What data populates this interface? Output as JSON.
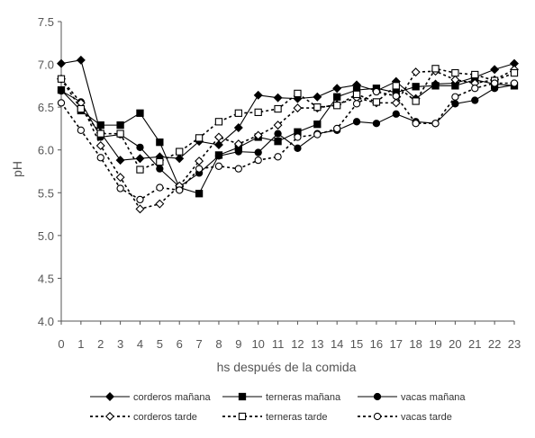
{
  "chart_data": {
    "type": "line",
    "title": "",
    "xlabel": "hs después de la comida",
    "ylabel": "pH",
    "x": [
      0,
      1,
      2,
      3,
      4,
      5,
      6,
      7,
      8,
      9,
      10,
      11,
      12,
      13,
      14,
      15,
      16,
      17,
      18,
      19,
      20,
      21,
      22,
      23
    ],
    "xlim": [
      0,
      23
    ],
    "ylim": [
      4.0,
      7.5
    ],
    "yticks": [
      "4.0",
      "4.5",
      "5.0",
      "5.5",
      "6.0",
      "6.5",
      "7.0",
      "7.5"
    ],
    "grid": false,
    "legend_position": "bottom",
    "series": [
      {
        "name": "corderos mañana",
        "marker": "diamond",
        "fill": "filled",
        "dash": "solid",
        "values": [
          7.01,
          7.05,
          6.2,
          5.88,
          5.9,
          5.92,
          5.9,
          6.1,
          6.06,
          6.26,
          6.64,
          6.61,
          6.6,
          6.62,
          6.72,
          6.76,
          6.69,
          6.8,
          6.6,
          6.77,
          6.78,
          6.85,
          6.94,
          7.01
        ]
      },
      {
        "name": "terneras mañana",
        "marker": "square",
        "fill": "filled",
        "dash": "solid",
        "values": [
          6.7,
          6.46,
          6.29,
          6.29,
          6.43,
          6.09,
          5.56,
          5.49,
          5.94,
          6.03,
          6.15,
          6.1,
          6.21,
          6.3,
          6.62,
          6.7,
          6.72,
          6.67,
          6.74,
          6.75,
          6.75,
          6.82,
          6.77,
          6.75
        ]
      },
      {
        "name": "vacas mañana",
        "marker": "circle",
        "fill": "filled",
        "dash": "solid",
        "values": [
          6.69,
          6.56,
          6.15,
          6.18,
          6.03,
          5.78,
          5.57,
          5.73,
          5.93,
          5.98,
          5.97,
          6.19,
          6.02,
          6.19,
          6.23,
          6.33,
          6.31,
          6.42,
          6.33,
          6.31,
          6.54,
          6.58,
          6.72,
          6.76
        ]
      },
      {
        "name": "corderos tarde",
        "marker": "diamond",
        "fill": "open",
        "dash": "dashed",
        "values": [
          6.83,
          6.55,
          6.05,
          5.68,
          5.31,
          5.37,
          5.58,
          5.87,
          6.15,
          6.07,
          6.17,
          6.29,
          6.49,
          6.49,
          6.53,
          6.61,
          6.55,
          6.55,
          6.91,
          6.92,
          6.82,
          6.78,
          6.82,
          6.94
        ]
      },
      {
        "name": "terneras tarde",
        "marker": "square",
        "fill": "open",
        "dash": "dashed",
        "values": [
          6.83,
          6.48,
          6.19,
          6.19,
          5.77,
          5.86,
          5.98,
          6.14,
          6.33,
          6.43,
          6.44,
          6.48,
          6.66,
          6.5,
          6.52,
          6.65,
          6.56,
          6.75,
          6.57,
          6.95,
          6.9,
          6.88,
          6.81,
          6.9
        ]
      },
      {
        "name": "vacas tarde",
        "marker": "circle",
        "fill": "open",
        "dash": "dashed",
        "values": [
          6.55,
          6.23,
          5.91,
          5.55,
          5.42,
          5.56,
          5.53,
          5.78,
          5.81,
          5.78,
          5.88,
          5.92,
          6.15,
          6.18,
          6.25,
          6.54,
          6.68,
          6.63,
          6.31,
          6.31,
          6.62,
          6.72,
          6.78,
          6.78
        ]
      }
    ]
  }
}
